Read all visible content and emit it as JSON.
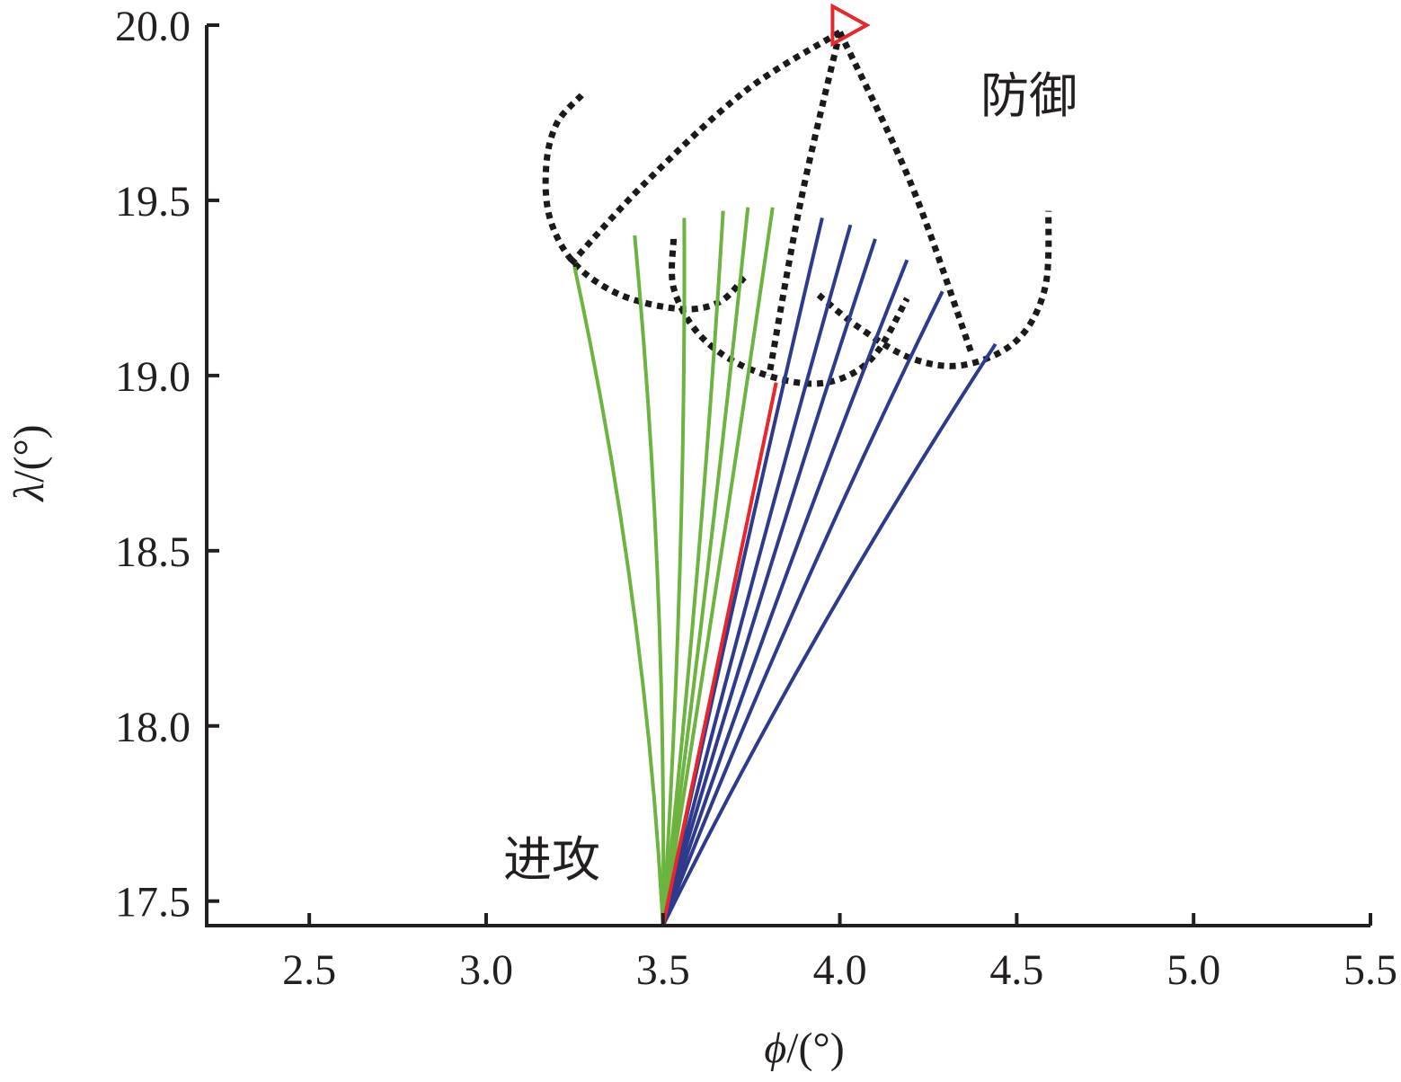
{
  "chart_data": {
    "type": "line",
    "title": "",
    "xlabel_symbol": "ϕ",
    "xlabel_unit": "/(°)",
    "ylabel_symbol": "λ",
    "ylabel_unit": "/(°)",
    "xlim": [
      2.21,
      5.5
    ],
    "ylim": [
      17.43,
      20.0
    ],
    "x_ticks": [
      2.5,
      3.0,
      3.5,
      4.0,
      4.5,
      5.0,
      5.5
    ],
    "x_tick_labels": [
      "2.5",
      "3.0",
      "3.5",
      "4.0",
      "4.5",
      "5.0",
      "5.5"
    ],
    "y_ticks": [
      17.5,
      18.0,
      18.5,
      19.0,
      19.5,
      20.0
    ],
    "y_tick_labels": [
      "17.5",
      "18.0",
      "18.5",
      "19.0",
      "19.5",
      "20.0"
    ],
    "grid": false,
    "legend": "none",
    "colors": {
      "attack": "#6db33f",
      "defense": "#2e3b8c",
      "nominal": "#e8262d",
      "boundary": "#1a1a1a",
      "axis": "#231f20"
    },
    "annotations": [
      {
        "text": "防御",
        "x": 4.38,
        "y": 19.79
      },
      {
        "text": "进攻",
        "x": 3.03,
        "y": 17.6
      }
    ],
    "origin": [
      3.5,
      17.43
    ],
    "target_marker": {
      "x": 4.02,
      "y": 20.0,
      "shape": "triangle-right"
    },
    "nominal_trajectory": {
      "end": [
        3.82,
        18.98
      ],
      "bulge": 0.0
    },
    "attack_trajectories": [
      {
        "end": [
          3.25,
          19.31
        ],
        "bulge": 0.075
      },
      {
        "end": [
          3.42,
          19.4
        ],
        "bulge": 0.05
      },
      {
        "end": [
          3.56,
          19.45
        ],
        "bulge": 0.035
      },
      {
        "end": [
          3.67,
          19.47
        ],
        "bulge": 0.025
      },
      {
        "end": [
          3.74,
          19.48
        ],
        "bulge": 0.015
      },
      {
        "end": [
          3.81,
          19.48
        ],
        "bulge": 0.008
      }
    ],
    "defense_trajectories": [
      {
        "end": [
          3.95,
          19.45
        ],
        "bulge": -0.01
      },
      {
        "end": [
          4.03,
          19.43
        ],
        "bulge": -0.015
      },
      {
        "end": [
          4.1,
          19.39
        ],
        "bulge": -0.02
      },
      {
        "end": [
          4.19,
          19.33
        ],
        "bulge": -0.03
      },
      {
        "end": [
          4.29,
          19.24
        ],
        "bulge": -0.045
      },
      {
        "end": [
          4.44,
          19.09
        ],
        "bulge": -0.065
      }
    ],
    "boundaries": [
      {
        "points": [
          [
            3.27,
            19.8
          ],
          [
            3.2,
            19.72
          ],
          [
            3.17,
            19.6
          ],
          [
            3.18,
            19.45
          ],
          [
            3.25,
            19.32
          ],
          [
            3.38,
            19.23
          ],
          [
            3.55,
            19.19
          ],
          [
            3.66,
            19.21
          ],
          [
            3.73,
            19.28
          ]
        ]
      },
      {
        "points": [
          [
            3.53,
            19.39
          ],
          [
            3.53,
            19.25
          ],
          [
            3.6,
            19.12
          ],
          [
            3.72,
            19.03
          ],
          [
            3.88,
            18.98
          ],
          [
            4.0,
            18.99
          ],
          [
            4.1,
            19.06
          ],
          [
            4.19,
            19.22
          ]
        ]
      },
      {
        "points": [
          [
            3.94,
            19.23
          ],
          [
            4.05,
            19.14
          ],
          [
            4.2,
            19.05
          ],
          [
            4.35,
            19.03
          ],
          [
            4.5,
            19.1
          ],
          [
            4.58,
            19.25
          ],
          [
            4.59,
            19.47
          ]
        ]
      },
      {
        "points": [
          [
            3.24,
            19.32
          ],
          [
            3.45,
            19.55
          ],
          [
            3.73,
            19.81
          ],
          [
            4.0,
            19.98
          ]
        ]
      },
      {
        "points": [
          [
            4.0,
            19.98
          ],
          [
            3.89,
            19.5
          ],
          [
            3.8,
            19.0
          ]
        ]
      },
      {
        "points": [
          [
            4.0,
            19.98
          ],
          [
            4.2,
            19.55
          ],
          [
            4.37,
            19.07
          ]
        ]
      }
    ]
  }
}
